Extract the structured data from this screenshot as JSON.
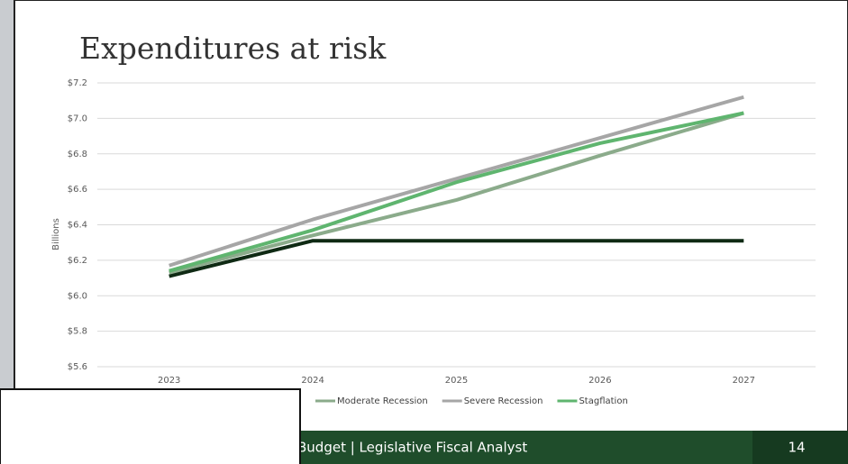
{
  "chart_data": {
    "type": "line",
    "title": "Expenditures at risk",
    "y_label": "Billions",
    "categories": [
      "2023",
      "2024",
      "2025",
      "2026",
      "2027"
    ],
    "series": [
      {
        "color": "#0f2a14",
        "values": [
          6.11,
          6.31,
          6.31,
          6.31,
          6.31
        ]
      },
      {
        "name": "Moderate Recession",
        "color": "#8bab8b",
        "values": [
          6.13,
          6.34,
          6.54,
          6.79,
          7.03
        ]
      },
      {
        "name": "Severe Recession",
        "color": "#a6a6a6",
        "values": [
          6.17,
          6.43,
          6.66,
          6.89,
          7.12
        ]
      },
      {
        "name": "Stagflation",
        "color": "#5fb56f",
        "values": [
          6.14,
          6.37,
          6.64,
          6.86,
          7.03
        ]
      }
    ],
    "ylim": [
      5.6,
      7.2
    ],
    "yticks": [
      {
        "value": 5.6,
        "label": "$5.6"
      },
      {
        "value": 5.8,
        "label": "$5.8"
      },
      {
        "value": 6.0,
        "label": "$6.0"
      },
      {
        "value": 6.2,
        "label": "$6.2"
      },
      {
        "value": 6.4,
        "label": "$6.4"
      },
      {
        "value": 6.6,
        "label": "$6.6"
      },
      {
        "value": 6.8,
        "label": "$6.8"
      },
      {
        "value": 7.0,
        "label": "$7.0"
      },
      {
        "value": 7.2,
        "label": "$7.2"
      }
    ],
    "grid": true
  },
  "footer": {
    "text": "Budget | Legislative Fiscal Analyst",
    "page": "14"
  }
}
